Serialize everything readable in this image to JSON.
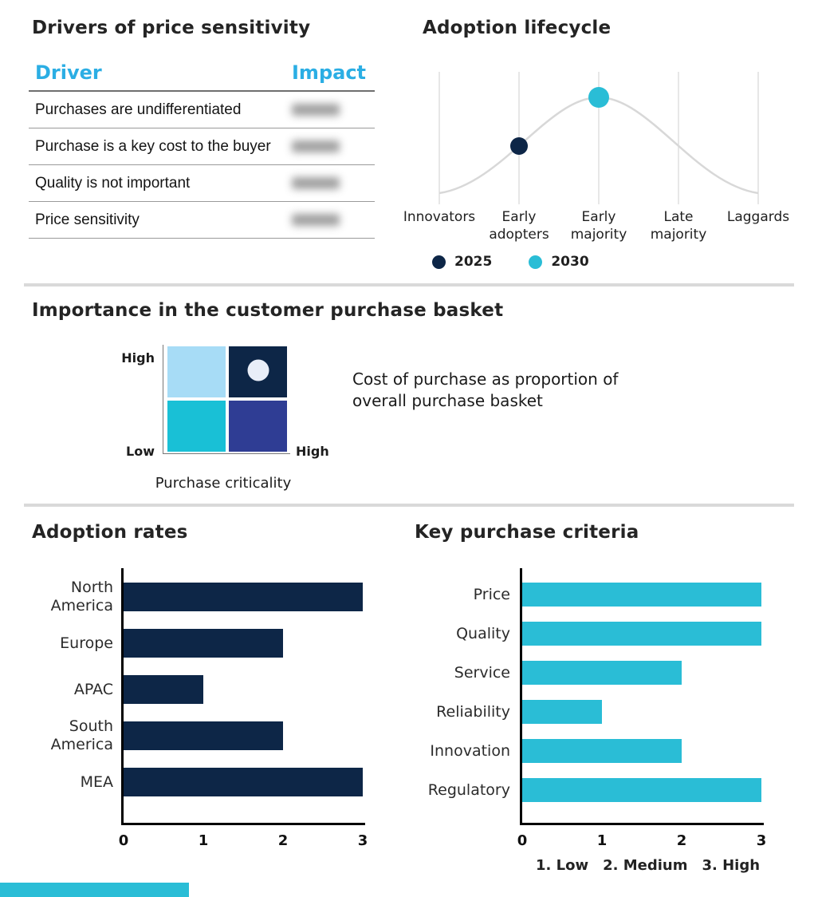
{
  "theme": {
    "navy": "#0d2647",
    "cyan": "#2abdd6",
    "sky": "#2baee4",
    "curve": "#d8d8d8",
    "grid": "#cfcfcf",
    "divider": "#d9d9d9",
    "marker_light": "#e9eef8"
  },
  "drivers": {
    "title": "Drivers of price sensitivity",
    "headers": [
      "Driver",
      "Impact"
    ],
    "rows": [
      {
        "driver": "Purchases are undifferentiated",
        "impact_redacted": true
      },
      {
        "driver": "Purchase is a key cost to the buyer",
        "impact_redacted": true
      },
      {
        "driver": "Quality is not important",
        "impact_redacted": true
      },
      {
        "driver": "Price sensitivity",
        "impact_redacted": true
      }
    ]
  },
  "lifecycle": {
    "title": "Adoption lifecycle"
  },
  "basket": {
    "title": "Importance in the customer purchase basket",
    "note": "Cost of purchase as proportion of overall purchase basket",
    "y_high": "High",
    "y_low": "Low",
    "x_high": "High",
    "x_label": "Purchase criticality"
  },
  "adoption": {
    "title": "Adoption rates"
  },
  "criteria": {
    "title": "Key purchase criteria",
    "footnote_parts": [
      "1. Low",
      "2. Medium",
      "3. High"
    ]
  },
  "chart_data": [
    {
      "type": "line",
      "title": "Adoption lifecycle",
      "categories": [
        "Innovators",
        "Early adopters",
        "Early majority",
        "Late majority",
        "Laggards"
      ],
      "curve": "bell-shaped adoption curve, light gray",
      "series": [
        {
          "name": "2025",
          "color": "#0d2647",
          "marker_category": "Early adopters",
          "marker_position": "mid-slope"
        },
        {
          "name": "2030",
          "color": "#2abdd6",
          "marker_category": "Early majority",
          "marker_position": "peak"
        }
      ],
      "legend_position": "bottom",
      "grid": "vertical lines at each category"
    },
    {
      "type": "heatmap",
      "title": "Importance in the customer purchase basket",
      "xlabel": "Purchase criticality",
      "x_range": [
        "Low",
        "High"
      ],
      "y_range": [
        "Low",
        "High"
      ],
      "note": "Cost of purchase as proportion of overall purchase basket",
      "quadrants": [
        {
          "position": "top-left",
          "color": "#a7dcf6",
          "marker": false
        },
        {
          "position": "top-right",
          "color": "#0d2647",
          "marker": true
        },
        {
          "position": "bottom-left",
          "color": "#19c0d6",
          "marker": false
        },
        {
          "position": "bottom-right",
          "color": "#2f3d94",
          "marker": false
        }
      ]
    },
    {
      "type": "bar",
      "title": "Adoption rates",
      "orientation": "horizontal",
      "categories": [
        "North America",
        "Europe",
        "APAC",
        "South America",
        "MEA"
      ],
      "values": [
        3,
        2,
        1,
        2,
        3
      ],
      "xlim": [
        0,
        3
      ],
      "ticks": [
        0,
        1,
        2,
        3
      ],
      "bar_color": "#0d2647"
    },
    {
      "type": "bar",
      "title": "Key purchase criteria",
      "orientation": "horizontal",
      "categories": [
        "Price",
        "Quality",
        "Service",
        "Reliability",
        "Innovation",
        "Regulatory"
      ],
      "values": [
        3,
        3,
        2,
        1,
        2,
        3
      ],
      "xlim": [
        0,
        3
      ],
      "ticks": [
        0,
        1,
        2,
        3
      ],
      "bar_color": "#2abdd6",
      "footnote": "1. Low  2. Medium  3. High"
    }
  ]
}
